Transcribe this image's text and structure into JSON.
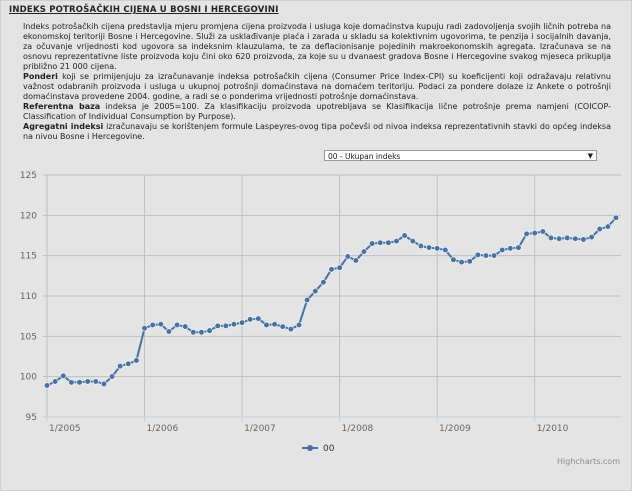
{
  "page": {
    "title": "INDEKS POTROŠAČKIH CIJENA U BOSNI I HERCEGOVINI",
    "p1": "Indeks potrošačkih cijena predstavlja mjeru promjena cijena proizvoda i usluga koje domaćinstva kupuju radi zadovoljenja svojih ličnih potreba na ekonomskoj teritoriji Bosne i Hercegovine. Služi za usklađivanje plaća i zarada u skladu sa kolektivnim ugovorima, te penzija i socijalnih davanja, za očuvanje vrijednosti kod ugovora sa indeksnim klauzulama, te za deflacionisanje pojedinih makroekonomskih agregata. Izračunava se na osnovu reprezentativne liste proizvoda koju čini oko 620 proizvoda, za koje su u dvanaest gradova Bosne i Hercegovine svakog mjeseca prikuplja približno 21 000 cijena.",
    "p2_bold": "Ponderi",
    "p2": " koji se primijenjuju za izračunavanje indeksa potrošačkih cijena (Consumer Price Index-CPI) su koeficijenti koji odražavaju relativnu važnost odabranih proizvoda i usluga u ukupnoj potrošnji domaćinstava na domaćem teritoriju. Podaci za pondere dolaze iz Ankete o potrošnji domaćinstava provedene 2004. godine, a radi se o ponderima vrijednosti potrošnje domaćinstava.",
    "p3_bold": "Referentna baza",
    "p3": " indeksa je 2005=100. Za klasifikaciju proizvoda upotrebljava se Klasifikacija lične potrošnje prema namjeni (COICOP-Classification of Individual Consumption by Purpose).",
    "p4_bold": "Agregatni indeksi",
    "p4": " izračunavaju se korištenjem formule Laspeyres-ovog tipa počevši od nivoa indeksa reprezentativnih stavki do općeg indeksa na nivou Bosne i Hercegovine."
  },
  "select": {
    "value": "00 - Ukupan indeks",
    "arrow": "▼"
  },
  "credit": "Highcharts.com",
  "colors": {
    "line": "#4572a7",
    "grid": "#c0c0c0",
    "axis": "#c0d0e0"
  },
  "chart_data": {
    "type": "line",
    "x_ticks": [
      "1/2005",
      "1/2006",
      "1/2007",
      "1/2008",
      "1/2009",
      "1/2010"
    ],
    "ylim": [
      95,
      125
    ],
    "y_ticks": [
      95,
      100,
      105,
      110,
      115,
      120,
      125
    ],
    "grid": true,
    "legend": "bottom-center",
    "series": [
      {
        "name": "00",
        "start": "2005-01",
        "frequency": "monthly",
        "values": [
          98.9,
          99.4,
          100.1,
          99.3,
          99.3,
          99.4,
          99.4,
          99.1,
          100.0,
          101.3,
          101.6,
          102.0,
          106.0,
          106.4,
          106.5,
          105.6,
          106.4,
          106.2,
          105.5,
          105.5,
          105.7,
          106.3,
          106.3,
          106.5,
          106.7,
          107.1,
          107.2,
          106.4,
          106.5,
          106.2,
          105.9,
          106.4,
          109.5,
          110.6,
          111.7,
          113.3,
          113.5,
          114.9,
          114.4,
          115.5,
          116.5,
          116.6,
          116.6,
          116.8,
          117.5,
          116.8,
          116.2,
          116.0,
          115.9,
          115.7,
          114.5,
          114.2,
          114.3,
          115.1,
          115.0,
          115.0,
          115.7,
          115.9,
          116.0,
          117.7,
          117.8,
          118.0,
          117.2,
          117.1,
          117.2,
          117.1,
          117.0,
          117.3,
          118.3,
          118.6,
          119.7
        ]
      }
    ]
  }
}
